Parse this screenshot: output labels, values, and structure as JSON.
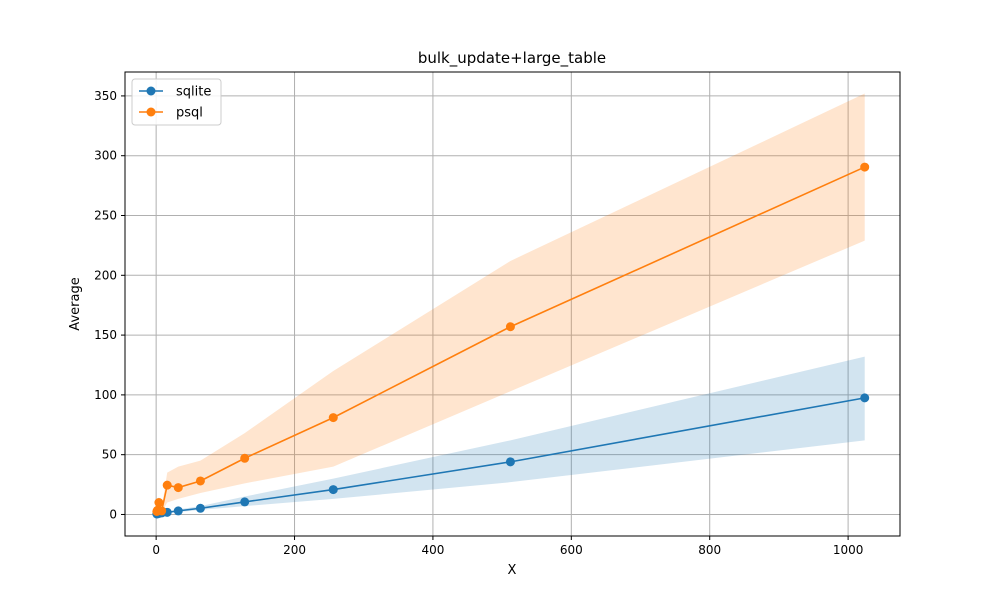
{
  "chart_data": {
    "type": "line",
    "title": "bulk_update+large_table",
    "xlabel": "X",
    "ylabel": "Average",
    "xlim": [
      -45,
      1075
    ],
    "ylim": [
      -18,
      370
    ],
    "xticks": [
      0,
      200,
      400,
      600,
      800,
      1000
    ],
    "yticks": [
      0,
      50,
      100,
      150,
      200,
      250,
      300,
      350
    ],
    "grid": true,
    "legend_position": "top-left",
    "series": [
      {
        "name": "sqlite",
        "color": "#1f77b4",
        "x": [
          1,
          2,
          4,
          8,
          16,
          32,
          64,
          128,
          256,
          512,
          1024
        ],
        "y": [
          0.4,
          0.6,
          0.9,
          1.3,
          1.8,
          3.0,
          5.2,
          10.5,
          20.8,
          44.0,
          97.5
        ],
        "lower": [
          0.2,
          0.3,
          0.5,
          0.8,
          1.2,
          2.0,
          3.8,
          7.0,
          13.0,
          27.0,
          62.0
        ],
        "upper": [
          0.6,
          0.9,
          1.3,
          1.9,
          2.6,
          4.2,
          7.0,
          15.0,
          30.0,
          62.0,
          132.0
        ]
      },
      {
        "name": "psql",
        "color": "#ff7f0e",
        "x": [
          1,
          2,
          4,
          8,
          16,
          32,
          64,
          128,
          256,
          512,
          1024
        ],
        "y": [
          2.5,
          3.5,
          10.0,
          3.0,
          24.5,
          22.5,
          28.0,
          47.0,
          81.0,
          157.0,
          290.5
        ],
        "lower": [
          1.5,
          2.0,
          3.0,
          2.0,
          10.0,
          13.0,
          18.0,
          26.0,
          40.0,
          103.0,
          229.0
        ],
        "upper": [
          4.0,
          5.0,
          15.0,
          5.0,
          35.0,
          40.0,
          45.0,
          68.0,
          120.0,
          212.0,
          352.0
        ]
      }
    ]
  }
}
